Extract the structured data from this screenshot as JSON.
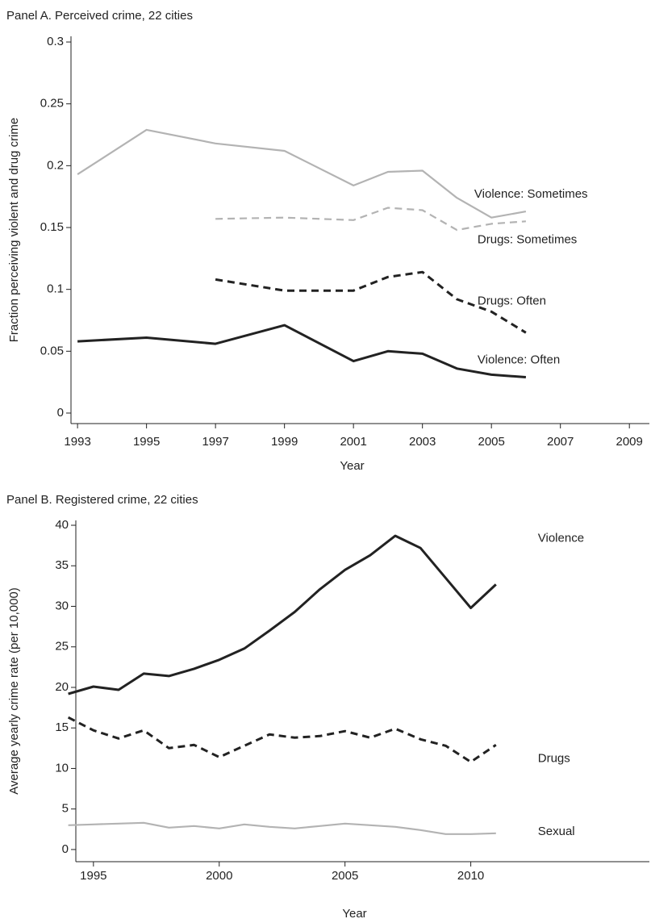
{
  "chart_data": [
    {
      "type": "line",
      "title": "Panel A. Perceived crime, 22 cities",
      "x_label": "Year",
      "y_label": "Fraction perceiving violent and drug crime",
      "x": [
        1993,
        1995,
        1997,
        1999,
        2001,
        2002,
        2003,
        2004,
        2005,
        2006
      ],
      "series": [
        {
          "name": "Violence: Sometimes",
          "color": "#b3b3b3",
          "line_style": "solid",
          "values": [
            0.193,
            0.229,
            0.218,
            0.212,
            0.184,
            0.195,
            0.196,
            0.174,
            0.158,
            0.163
          ]
        },
        {
          "name": "Drugs: Sometimes",
          "color": "#b3b3b3",
          "line_style": "dashed",
          "values": [
            null,
            null,
            0.157,
            0.158,
            0.156,
            0.166,
            0.164,
            0.148,
            0.153,
            0.155
          ]
        },
        {
          "name": "Drugs: Often",
          "color": "#222222",
          "line_style": "dashed",
          "values": [
            null,
            null,
            0.108,
            0.099,
            0.099,
            0.11,
            0.114,
            0.092,
            0.082,
            0.065
          ]
        },
        {
          "name": "Violence: Often",
          "color": "#222222",
          "line_style": "solid",
          "values": [
            0.058,
            0.061,
            0.056,
            0.071,
            0.042,
            0.05,
            0.048,
            0.036,
            0.031,
            0.029
          ]
        }
      ],
      "xlim": [
        1992.81,
        2009.58
      ],
      "xticks": [
        1993,
        1995,
        1997,
        1999,
        2001,
        2003,
        2005,
        2007,
        2009
      ],
      "ylim": [
        -0.0085,
        0.3046
      ],
      "yticks": [
        0,
        0.05,
        0.1,
        0.15,
        0.2,
        0.25,
        0.3
      ]
    },
    {
      "type": "line",
      "title": "Panel B. Registered crime, 22 cities",
      "x_label": "Year",
      "y_label": "Average yearly crime rate (per 10,000)",
      "x": [
        1994,
        1995,
        1996,
        1997,
        1998,
        1999,
        2000,
        2001,
        2002,
        2003,
        2004,
        2005,
        2006,
        2007,
        2008,
        2009,
        2010,
        2011
      ],
      "series": [
        {
          "name": "Violence",
          "color": "#222222",
          "line_style": "solid",
          "values": [
            19.2,
            20.1,
            19.7,
            21.7,
            21.4,
            22.3,
            23.4,
            24.8,
            27.0,
            29.3,
            32.1,
            34.5,
            36.3,
            38.7,
            37.2,
            33.5,
            29.8,
            32.7
          ]
        },
        {
          "name": "Drugs",
          "color": "#222222",
          "line_style": "dashed",
          "values": [
            16.3,
            14.7,
            13.7,
            14.7,
            12.5,
            12.9,
            11.4,
            12.8,
            14.2,
            13.8,
            14.0,
            14.6,
            13.8,
            14.9,
            13.6,
            12.8,
            10.8,
            12.9
          ]
        },
        {
          "name": "Sexual",
          "color": "#b3b3b3",
          "line_style": "solid",
          "values": [
            3.0,
            3.1,
            3.2,
            3.3,
            2.7,
            2.9,
            2.6,
            3.1,
            2.8,
            2.6,
            2.9,
            3.2,
            3.0,
            2.8,
            2.4,
            1.9,
            1.9,
            2.0
          ]
        }
      ],
      "xlim": [
        1994.3,
        2017.1
      ],
      "xticks": [
        1995,
        2000,
        2005,
        2010
      ],
      "ylim": [
        -1.5,
        40.6
      ],
      "yticks": [
        0,
        5,
        10,
        15,
        20,
        25,
        30,
        35,
        40
      ]
    }
  ]
}
